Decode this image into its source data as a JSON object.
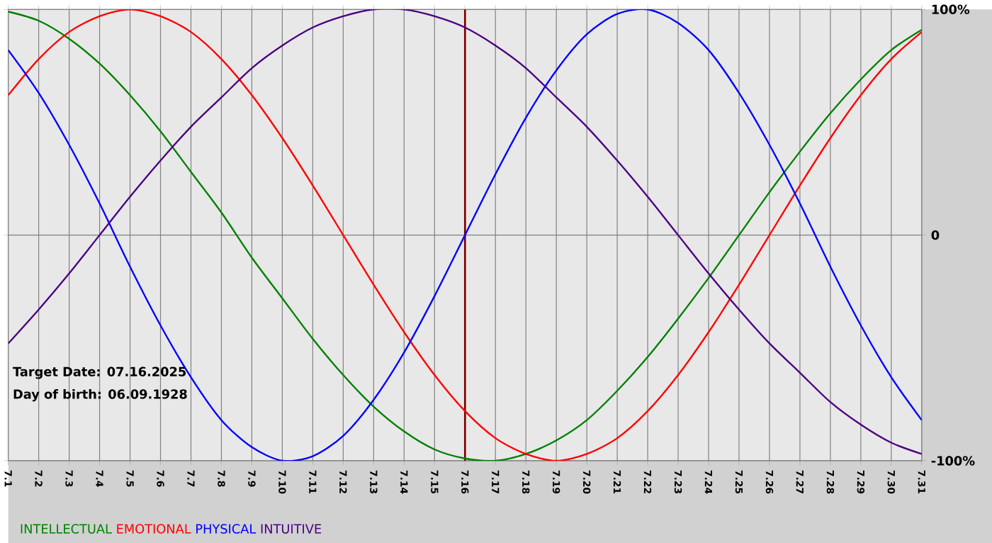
{
  "chart_data": {
    "type": "line",
    "annotations": [
      "Target Date: 07.16.2025",
      "Day of birth: 06.09.1928"
    ],
    "categories": [
      "7.1",
      "7.2",
      "7.3",
      "7.4",
      "7.5",
      "7.6",
      "7.7",
      "7.8",
      "7.9",
      "7.10",
      "7.11",
      "7.12",
      "7.13",
      "7.14",
      "7.15",
      "7.16",
      "7.17",
      "7.18",
      "7.19",
      "7.20",
      "7.21",
      "7.22",
      "7.23",
      "7.24",
      "7.25",
      "7.26",
      "7.27",
      "7.28",
      "7.29",
      "7.30",
      "7.31"
    ],
    "series": [
      {
        "name": "INTELLECTUAL",
        "color": "#008000",
        "values": [
          99,
          95,
          87,
          76,
          62,
          46,
          28,
          10,
          -10,
          -28,
          -46,
          -62,
          -76,
          -87,
          -95,
          -99,
          -100,
          -97,
          -91,
          -82,
          -69,
          -54,
          -37,
          -19,
          0,
          19,
          37,
          54,
          69,
          82,
          91
        ]
      },
      {
        "name": "EMOTIONAL",
        "color": "#ff0000",
        "values": [
          62,
          78,
          90,
          97,
          100,
          97,
          90,
          78,
          62,
          43,
          22,
          0,
          -22,
          -43,
          -62,
          -78,
          -90,
          -97,
          -100,
          -97,
          -90,
          -78,
          -62,
          -43,
          -22,
          0,
          22,
          43,
          62,
          78,
          90
        ]
      },
      {
        "name": "PHYSICAL",
        "color": "#0000ff",
        "values": [
          82,
          63,
          40,
          14,
          -14,
          -40,
          -63,
          -82,
          -94,
          -100,
          -98,
          -89,
          -73,
          -52,
          -27,
          0,
          27,
          52,
          73,
          89,
          98,
          100,
          94,
          82,
          63,
          40,
          14,
          -14,
          -40,
          -63,
          -82
        ]
      },
      {
        "name": "INTUITIVE",
        "color": "#4b0082",
        "values": [
          -48,
          -33,
          -17,
          0,
          17,
          33,
          48,
          61,
          74,
          84,
          92,
          97,
          100,
          100,
          97,
          92,
          84,
          74,
          61,
          48,
          33,
          17,
          0,
          -17,
          -33,
          -48,
          -61,
          -74,
          -84,
          -92,
          -97
        ]
      }
    ],
    "ylim": [
      -100,
      100
    ],
    "yticks": [
      {
        "value": -100,
        "label": "-100%"
      },
      0,
      {
        "value": 100,
        "label": "100%"
      }
    ],
    "ref_lines": [
      {
        "axis": "x",
        "value": "7.16",
        "color": "#800000"
      }
    ],
    "grid": true,
    "legend": "bottom left",
    "marker": "none",
    "line_style": "solid"
  }
}
